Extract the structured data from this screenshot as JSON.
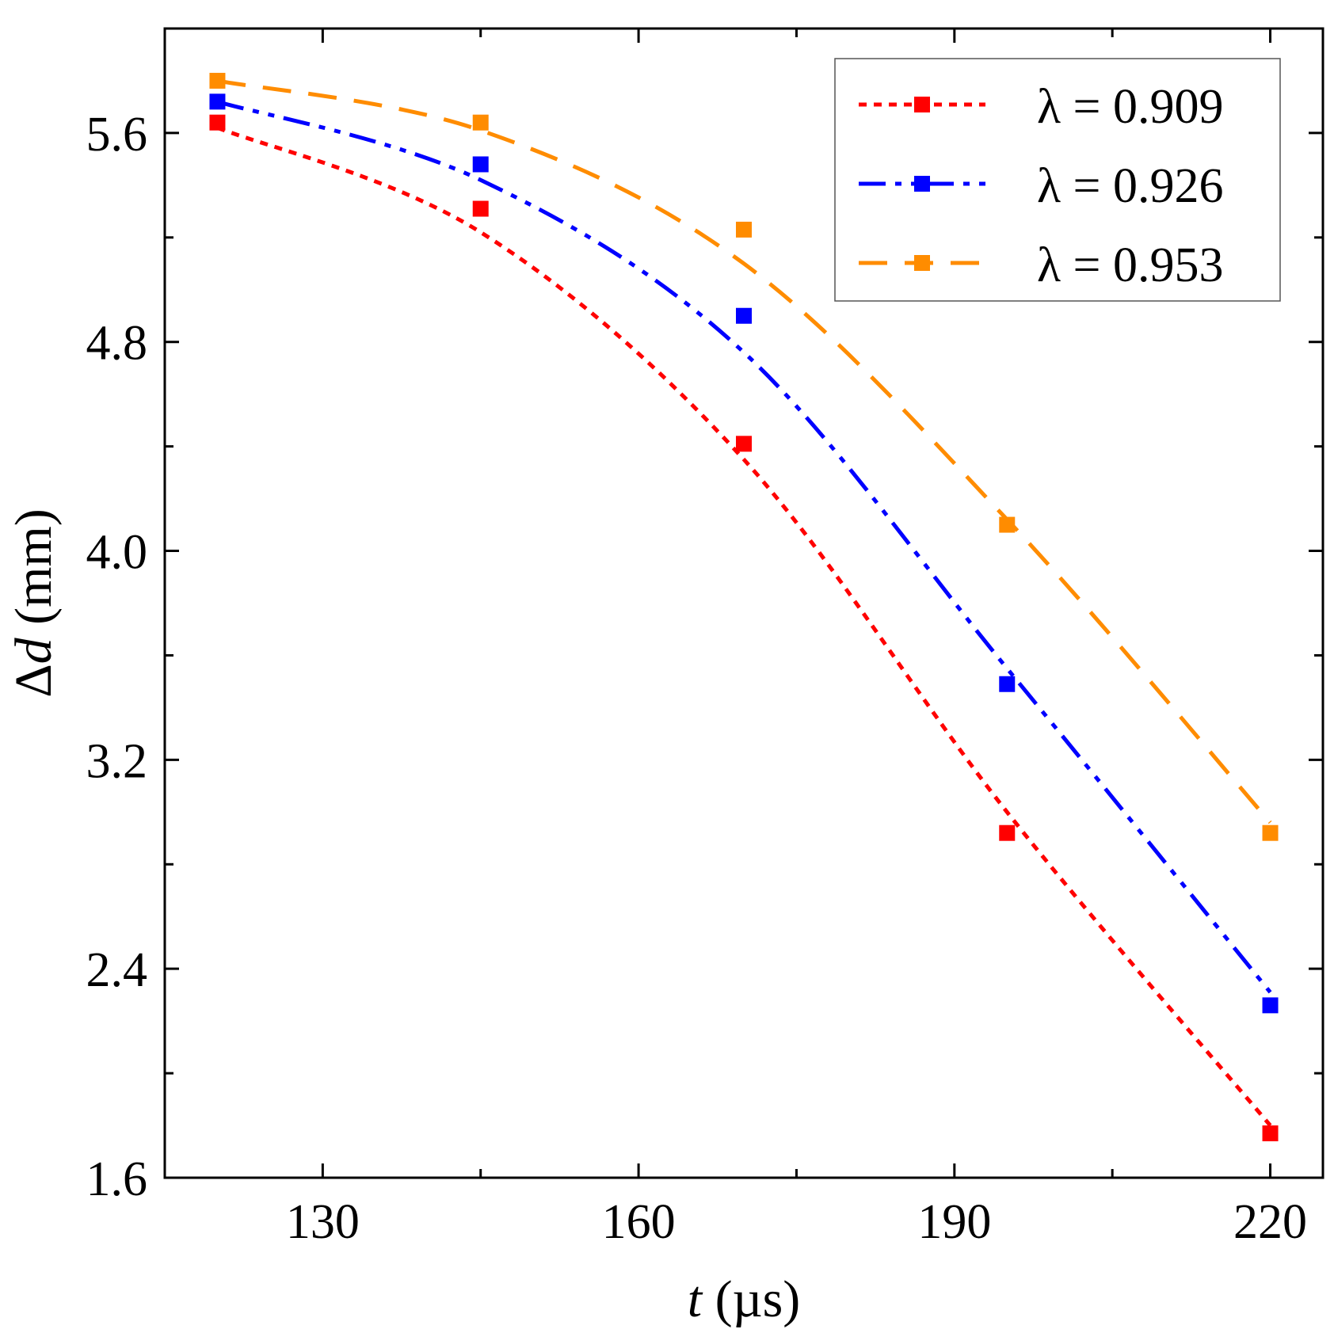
{
  "chart_data": {
    "type": "line",
    "title": "",
    "xlabel": "t (µs)",
    "xlabel_var": "t",
    "xlabel_unit": "(µs)",
    "ylabel": "Δd (mm)",
    "ylabel_delta": "Δ",
    "ylabel_var": "d",
    "ylabel_unit": "(mm)",
    "xlim": [
      115,
      225
    ],
    "ylim": [
      1.6,
      6.0
    ],
    "xticks": [
      130,
      160,
      190,
      220
    ],
    "xtick_labels": [
      "130",
      "160",
      "190",
      "220"
    ],
    "x_minor_ticks": [
      145,
      175,
      205
    ],
    "yticks": [
      1.6,
      2.4,
      3.2,
      4.0,
      4.8,
      5.6
    ],
    "ytick_labels": [
      "1.6",
      "2.4",
      "3.2",
      "4.0",
      "4.8",
      "5.6"
    ],
    "y_minor_ticks": [
      2.0,
      2.8,
      3.6,
      4.4,
      5.2
    ],
    "grid": false,
    "legend_position": "top-right",
    "x": [
      120,
      145,
      170,
      195,
      220
    ],
    "series": [
      {
        "name": "λ = 0.909",
        "color": "#ff0000",
        "line_style": "dotted",
        "marker": "square",
        "values": [
          5.64,
          5.31,
          4.41,
          2.92,
          1.77
        ],
        "fit": [
          5.62,
          5.22,
          4.35,
          3.0,
          1.8
        ]
      },
      {
        "name": "λ = 0.926",
        "color": "#0000ff",
        "line_style": "dash-dot-dot",
        "marker": "square",
        "values": [
          5.72,
          5.48,
          4.9,
          3.49,
          2.26
        ],
        "fit": [
          5.72,
          5.42,
          4.76,
          3.55,
          2.31
        ]
      },
      {
        "name": "λ = 0.953",
        "color": "#ff8c00",
        "line_style": "dashed",
        "marker": "square",
        "values": [
          5.8,
          5.64,
          5.23,
          4.1,
          2.92
        ],
        "fit": [
          5.8,
          5.61,
          5.1,
          4.12,
          2.96
        ]
      }
    ]
  }
}
